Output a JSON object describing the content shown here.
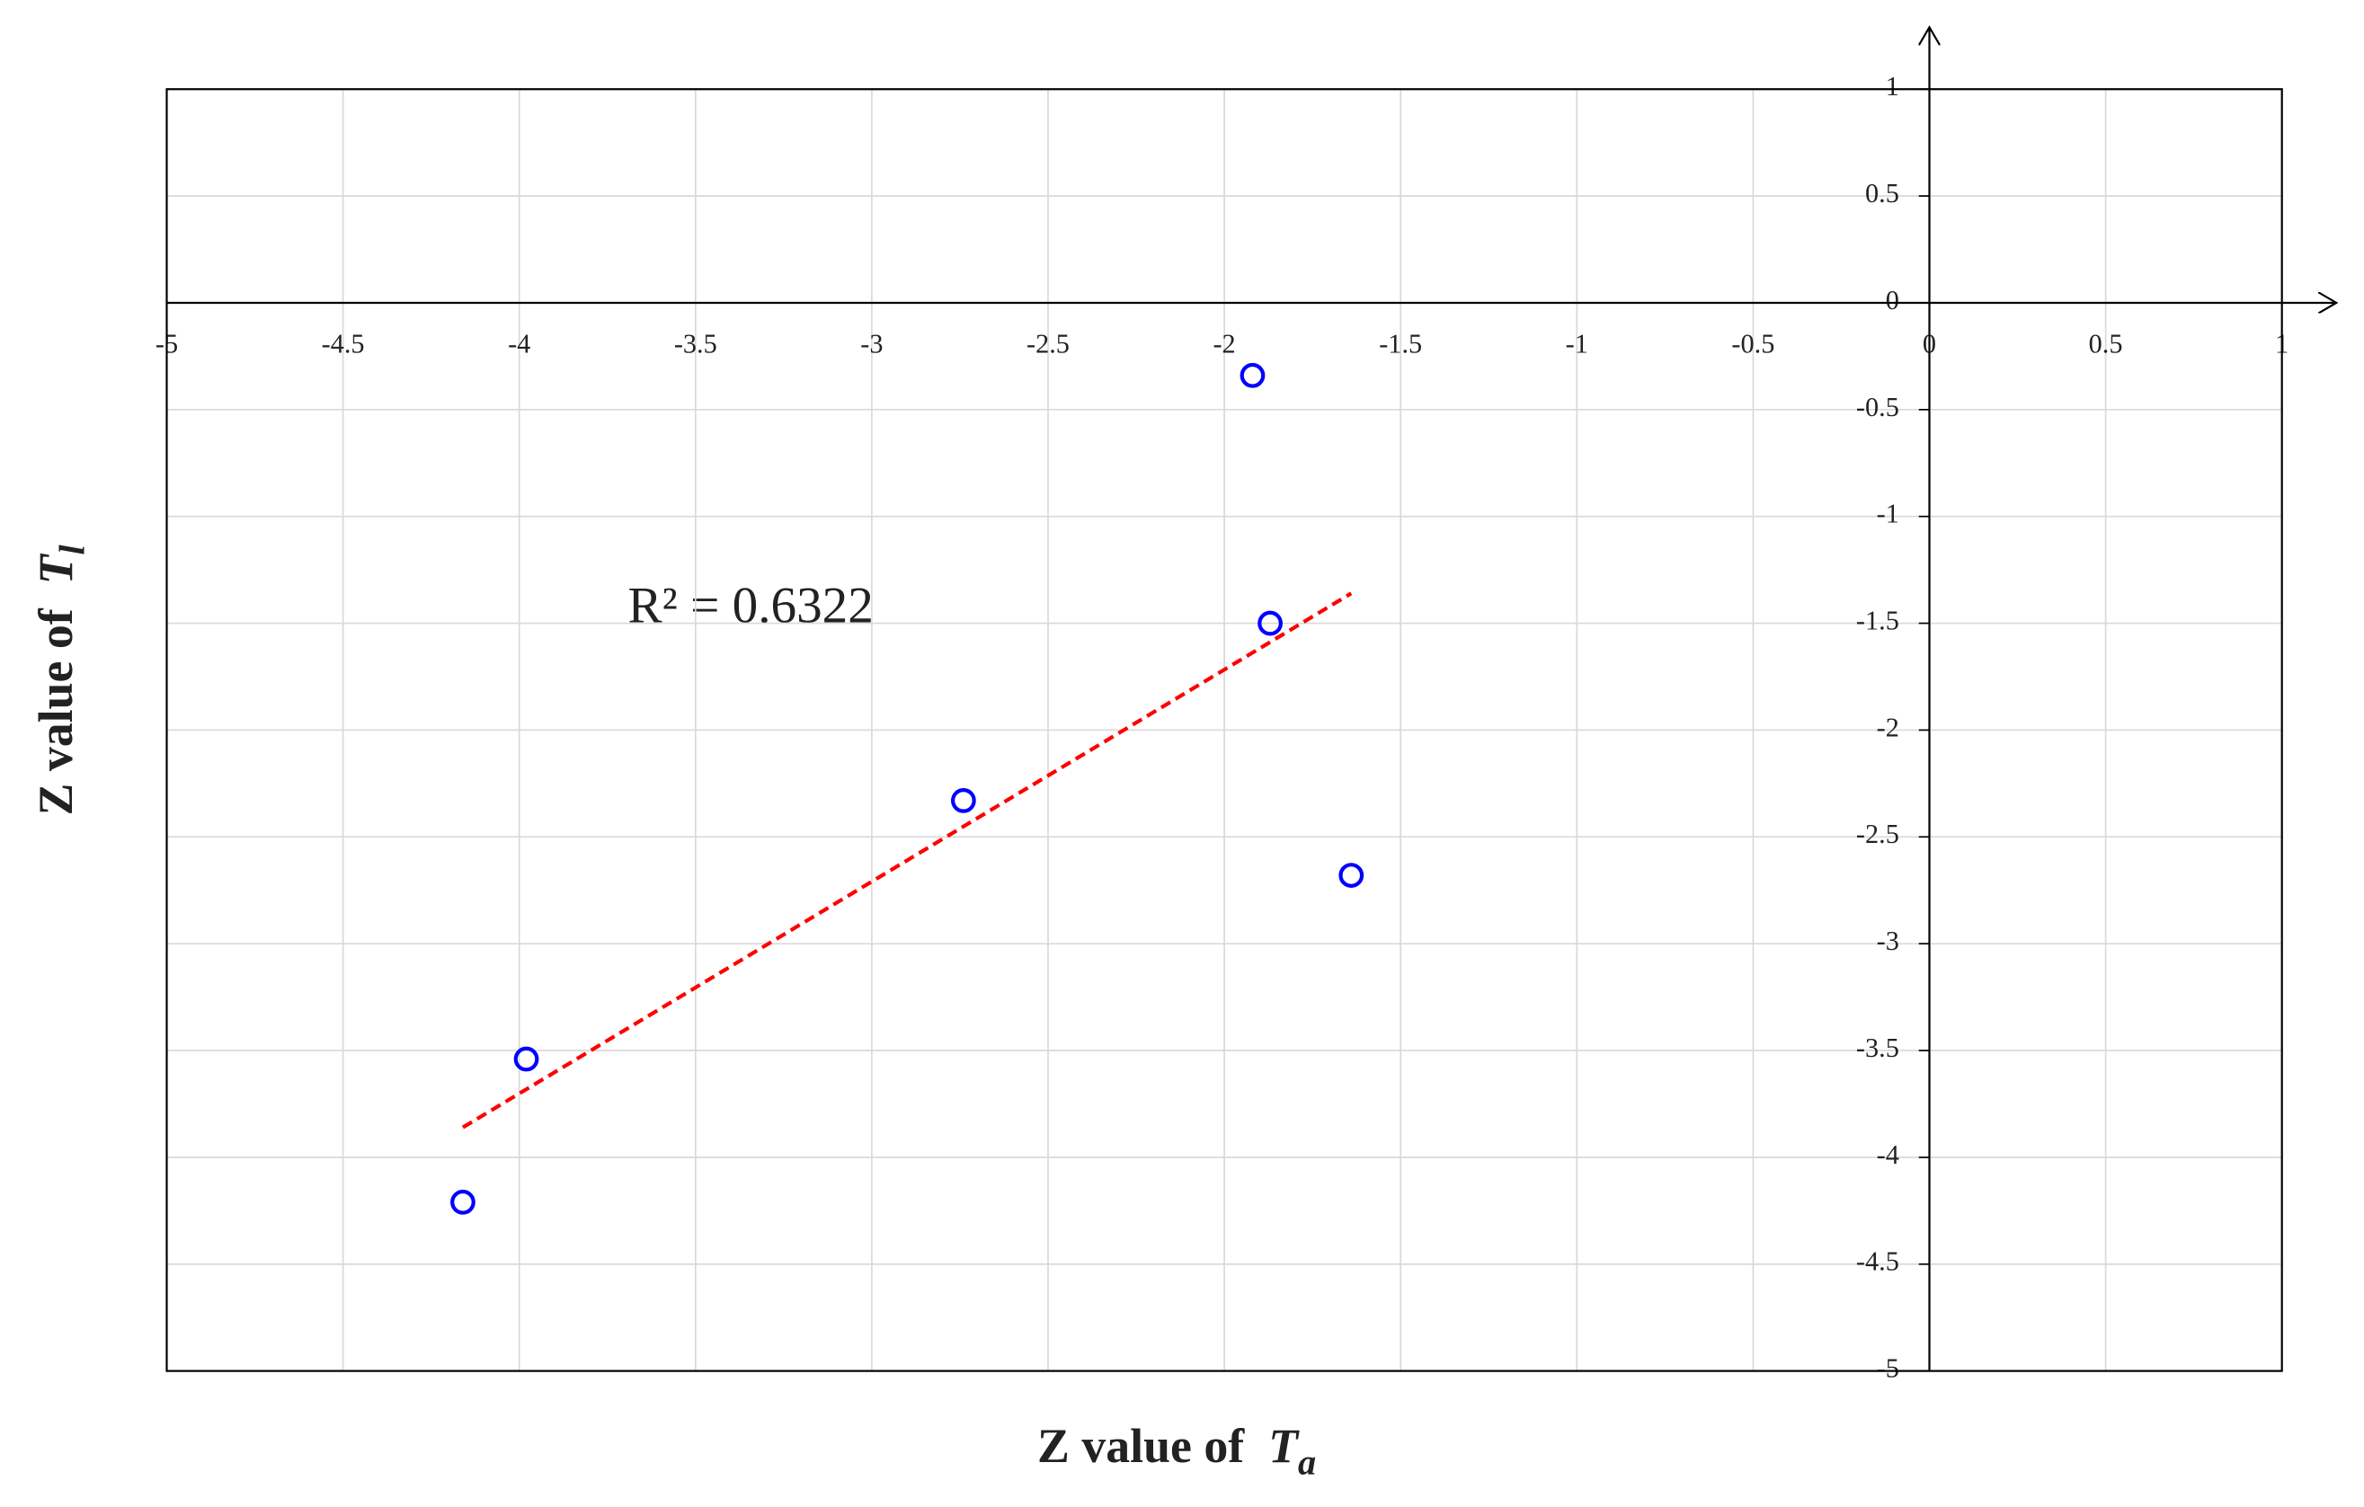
{
  "chart_data": {
    "type": "scatter",
    "xlabel": {
      "text": "Z value of",
      "symbol": "T",
      "subscript": "a"
    },
    "ylabel": {
      "text": "Z value of",
      "symbol": "T",
      "subscript": "l"
    },
    "annotation": "R² = 0.6322",
    "x": [
      -4.16,
      -3.98,
      -2.74,
      -1.92,
      -1.87,
      -1.64
    ],
    "y": [
      -4.21,
      -3.54,
      -2.33,
      -0.34,
      -1.5,
      -2.68
    ],
    "color": "#0000ff",
    "trendline": {
      "x": [
        -4.16,
        -1.64
      ],
      "y": [
        -3.86,
        -1.36
      ],
      "color": "#ff0000"
    },
    "xlim": [
      -5,
      1
    ],
    "ylim": [
      -5,
      1
    ],
    "xticks": [
      -5,
      -4.5,
      -4,
      -3.5,
      -3,
      -2.5,
      -2,
      -1.5,
      -1,
      -0.5,
      0,
      0.5,
      1
    ],
    "yticks": [
      -5,
      -4.5,
      -4,
      -3.5,
      -3,
      -2.5,
      -2,
      -1.5,
      -1,
      -0.5,
      0,
      0.5,
      1
    ],
    "grid": true
  }
}
